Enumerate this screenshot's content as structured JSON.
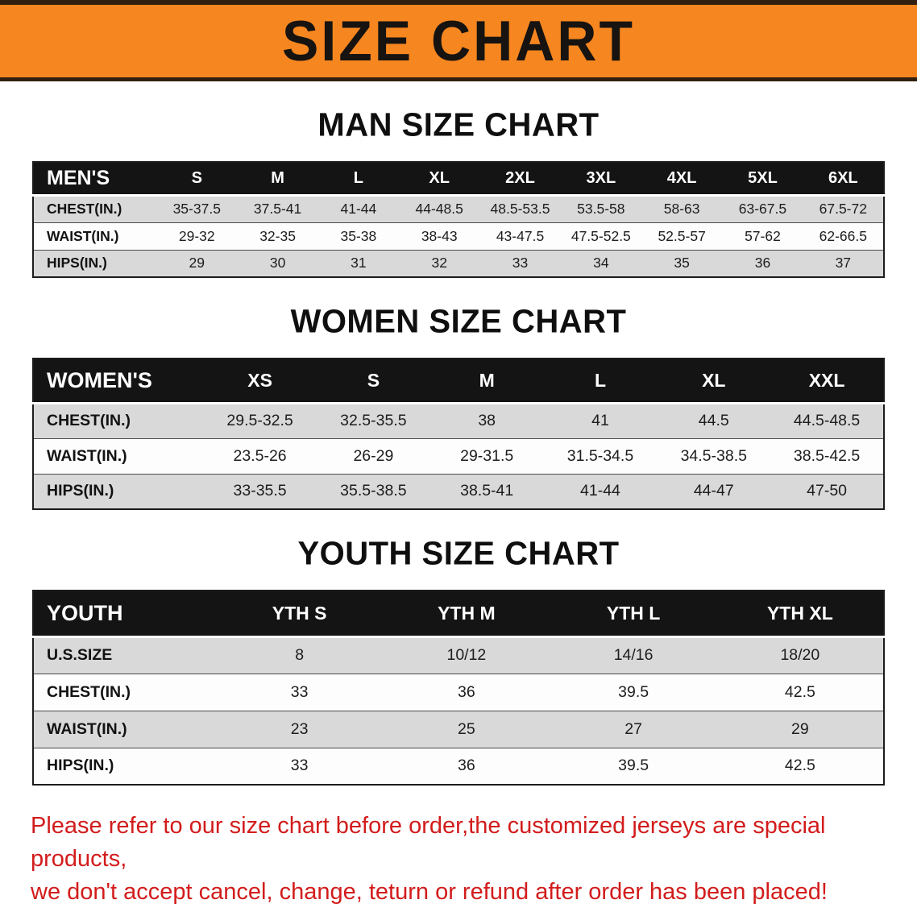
{
  "banner": {
    "title": "SIZE CHART"
  },
  "sections": [
    {
      "heading": "MAN SIZE CHART",
      "table": {
        "header": [
          "MEN'S",
          "S",
          "M",
          "L",
          "XL",
          "2XL",
          "3XL",
          "4XL",
          "5XL",
          "6XL"
        ],
        "rows": [
          [
            "CHEST(IN.)",
            "35-37.5",
            "37.5-41",
            "41-44",
            "44-48.5",
            "48.5-53.5",
            "53.5-58",
            "58-63",
            "63-67.5",
            "67.5-72"
          ],
          [
            "WAIST(IN.)",
            "29-32",
            "32-35",
            "35-38",
            "38-43",
            "43-47.5",
            "47.5-52.5",
            "52.5-57",
            "57-62",
            "62-66.5"
          ],
          [
            "HIPS(IN.)",
            "29",
            "30",
            "31",
            "32",
            "33",
            "34",
            "35",
            "36",
            "37"
          ]
        ]
      }
    },
    {
      "heading": "WOMEN SIZE CHART",
      "table": {
        "header": [
          "WOMEN'S",
          "XS",
          "S",
          "M",
          "L",
          "XL",
          "XXL"
        ],
        "rows": [
          [
            "CHEST(IN.)",
            "29.5-32.5",
            "32.5-35.5",
            "38",
            "41",
            "44.5",
            "44.5-48.5"
          ],
          [
            "WAIST(IN.)",
            "23.5-26",
            "26-29",
            "29-31.5",
            "31.5-34.5",
            "34.5-38.5",
            "38.5-42.5"
          ],
          [
            "HIPS(IN.)",
            "33-35.5",
            "35.5-38.5",
            "38.5-41",
            "41-44",
            "44-47",
            "47-50"
          ]
        ]
      }
    },
    {
      "heading": "YOUTH SIZE CHART",
      "table": {
        "header": [
          "YOUTH",
          "YTH S",
          "YTH M",
          "YTH L",
          "YTH XL"
        ],
        "rows": [
          [
            "U.S.SIZE",
            "8",
            "10/12",
            "14/16",
            "18/20"
          ],
          [
            "CHEST(IN.)",
            "33",
            "36",
            "39.5",
            "42.5"
          ],
          [
            "WAIST(IN.)",
            "23",
            "25",
            "27",
            "29"
          ],
          [
            "HIPS(IN.)",
            "33",
            "36",
            "39.5",
            "42.5"
          ]
        ]
      }
    }
  ],
  "footer": {
    "lines": [
      "Please refer to our size chart before order,the customized jerseys are special products,",
      "we don't accept cancel, change, teturn or refund after order has been placed!"
    ]
  },
  "colors": {
    "banner_bg": "#f6861f",
    "header_bg": "#141414",
    "row_alt": "#d9d9d9",
    "footer_text": "#d21c1c"
  }
}
